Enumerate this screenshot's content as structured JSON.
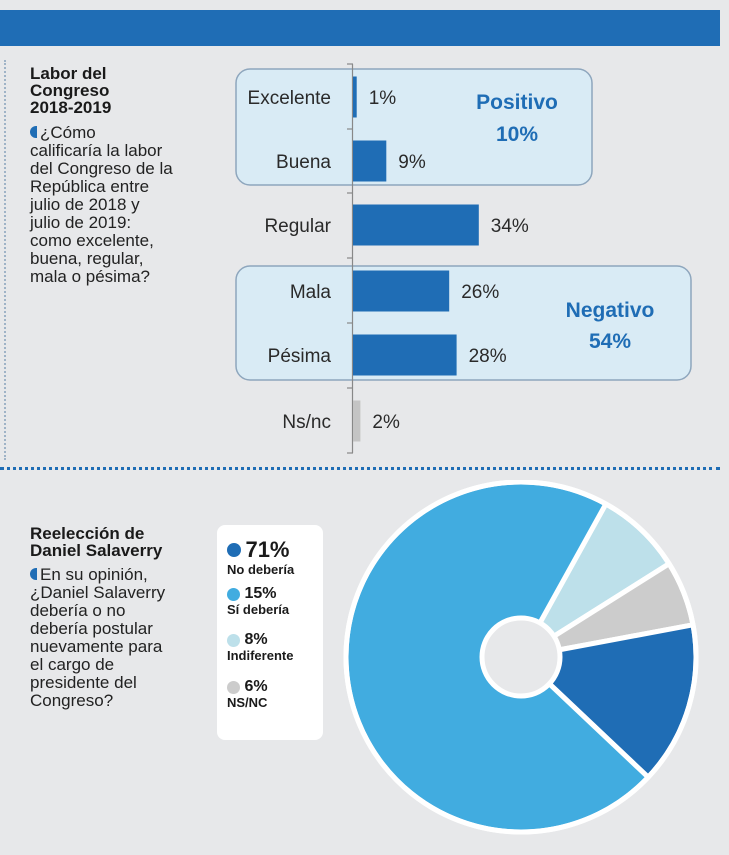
{
  "charts": {
    "q1": {
      "title": [
        "Labor del",
        "Congreso",
        "2018-2019"
      ],
      "question": [
        "¿Cómo",
        "calificaría la labor",
        "del Congreso de la",
        "República entre",
        "julio de 2018 y",
        "julio de 2019:",
        "como excelente,",
        "buena, regular,",
        "mala o pésima?"
      ]
    },
    "q2": {
      "title": [
        "Reelección de",
        "Daniel Salaverry"
      ],
      "question": [
        "En su opinión,",
        "¿Daniel Salaverry",
        "debería o no",
        "debería postular",
        "nuevamente para",
        "el cargo de",
        "presidente del",
        "Congreso?"
      ]
    }
  },
  "chart_data": [
    {
      "type": "bar",
      "orientation": "horizontal",
      "categories": [
        "Excelente",
        "Buena",
        "Regular",
        "Mala",
        "Pésima",
        "Ns/nc"
      ],
      "values": [
        1,
        9,
        34,
        26,
        28,
        2
      ],
      "value_labels": [
        "1%",
        "9%",
        "34%",
        "26%",
        "28%",
        "2%"
      ],
      "colors": [
        "#1f6db5",
        "#1f6db5",
        "#1f6db5",
        "#1f6db5",
        "#1f6db5",
        "#c4c4c4"
      ],
      "groups": [
        {
          "label": "Positivo",
          "value_label": "10%",
          "members": [
            "Excelente",
            "Buena"
          ]
        },
        {
          "label": "Negativo",
          "value_label": "54%",
          "members": [
            "Mala",
            "Pésima"
          ]
        }
      ]
    },
    {
      "type": "pie",
      "style": "donut",
      "slices": [
        {
          "label": "No debería",
          "value": 71,
          "value_label": "71%",
          "color": "#41ace0"
        },
        {
          "label": "Sí debería",
          "value": 15,
          "value_label": "15%",
          "color": "#1f6db5"
        },
        {
          "label": "Indiferente",
          "value": 8,
          "value_label": "8%",
          "color": "#bde0ea"
        },
        {
          "label": "NS/NC",
          "value": 6,
          "value_label": "6%",
          "color": "#cccccc"
        }
      ],
      "legend_dot_colors": [
        "#1f6db5",
        "#41ace0",
        "#bde0ea",
        "#cccccc"
      ]
    }
  ]
}
